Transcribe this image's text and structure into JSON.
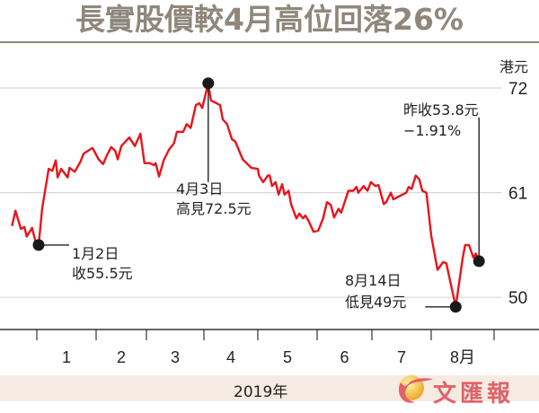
{
  "chart_data": {
    "type": "line",
    "title": "長實股價較4月高位回落26%",
    "unit_label": "港元",
    "xlabel": "2019年",
    "ylim": [
      46.6,
      73.3
    ],
    "yticks": [
      {
        "value": 72,
        "label": "72"
      },
      {
        "value": 61,
        "label": "61"
      },
      {
        "value": 50,
        "label": "50"
      }
    ],
    "month_ticks": [
      1,
      2,
      3,
      4,
      5,
      6,
      7,
      8,
      9
    ],
    "month_labels": [
      {
        "pos": 1.5,
        "label": "1"
      },
      {
        "pos": 2.5,
        "label": "2"
      },
      {
        "pos": 3.5,
        "label": "3"
      },
      {
        "pos": 4.5,
        "label": "4"
      },
      {
        "pos": 5.5,
        "label": "5"
      },
      {
        "pos": 6.5,
        "label": "6"
      },
      {
        "pos": 7.5,
        "label": "7"
      },
      {
        "pos": 8.5,
        "label": "8月"
      }
    ],
    "grid": true,
    "series": [
      {
        "name": "長實股價",
        "color": "#e8141b",
        "points": [
          [
            0.58,
            57.5
          ],
          [
            0.64,
            59.1
          ],
          [
            0.73,
            57.2
          ],
          [
            0.79,
            57.4
          ],
          [
            0.83,
            56.4
          ],
          [
            0.92,
            57.3
          ],
          [
            1.0,
            55.3
          ],
          [
            1.03,
            55.5
          ],
          [
            1.09,
            59.3
          ],
          [
            1.2,
            63.5
          ],
          [
            1.26,
            63.3
          ],
          [
            1.32,
            64.4
          ],
          [
            1.35,
            62.6
          ],
          [
            1.41,
            63.5
          ],
          [
            1.52,
            62.6
          ],
          [
            1.55,
            63.6
          ],
          [
            1.64,
            63.2
          ],
          [
            1.74,
            64.3
          ],
          [
            1.79,
            65.1
          ],
          [
            1.94,
            65.7
          ],
          [
            2.05,
            64.5
          ],
          [
            2.14,
            64.0
          ],
          [
            2.21,
            64.9
          ],
          [
            2.3,
            65.8
          ],
          [
            2.38,
            65.4
          ],
          [
            2.43,
            64.5
          ],
          [
            2.5,
            65.9
          ],
          [
            2.66,
            66.8
          ],
          [
            2.77,
            65.9
          ],
          [
            2.88,
            67.2
          ],
          [
            2.96,
            64.1
          ],
          [
            3.06,
            64.1
          ],
          [
            3.13,
            63.9
          ],
          [
            3.16,
            64.1
          ],
          [
            3.22,
            62.7
          ],
          [
            3.3,
            64.4
          ],
          [
            3.39,
            65.5
          ],
          [
            3.48,
            66.2
          ],
          [
            3.53,
            67.4
          ],
          [
            3.64,
            67.4
          ],
          [
            3.7,
            68.2
          ],
          [
            3.77,
            67.8
          ],
          [
            3.86,
            70.2
          ],
          [
            3.92,
            70.4
          ],
          [
            3.97,
            69.9
          ],
          [
            4.08,
            72.5
          ],
          [
            4.13,
            70.7
          ],
          [
            4.3,
            70.2
          ],
          [
            4.35,
            68.7
          ],
          [
            4.43,
            68.2
          ],
          [
            4.52,
            66.6
          ],
          [
            4.58,
            66.4
          ],
          [
            4.72,
            64.5
          ],
          [
            4.88,
            63.6
          ],
          [
            5.0,
            63.5
          ],
          [
            5.02,
            62.8
          ],
          [
            5.09,
            62.1
          ],
          [
            5.17,
            62.8
          ],
          [
            5.2,
            62.8
          ],
          [
            5.24,
            61.7
          ],
          [
            5.3,
            62.1
          ],
          [
            5.35,
            60.8
          ],
          [
            5.41,
            61.9
          ],
          [
            5.45,
            60.8
          ],
          [
            5.52,
            61.2
          ],
          [
            5.56,
            59.8
          ],
          [
            5.65,
            58.3
          ],
          [
            5.7,
            58.8
          ],
          [
            5.76,
            58.3
          ],
          [
            5.8,
            58.6
          ],
          [
            5.85,
            58.1
          ],
          [
            5.94,
            56.9
          ],
          [
            6.02,
            57.0
          ],
          [
            6.11,
            58.3
          ],
          [
            6.18,
            60.0
          ],
          [
            6.25,
            59.7
          ],
          [
            6.31,
            58.4
          ],
          [
            6.39,
            59.3
          ],
          [
            6.44,
            58.9
          ],
          [
            6.57,
            61.2
          ],
          [
            6.66,
            61.2
          ],
          [
            6.72,
            61.6
          ],
          [
            6.75,
            61.0
          ],
          [
            6.85,
            61.7
          ],
          [
            6.92,
            61.2
          ],
          [
            6.98,
            62.1
          ],
          [
            7.06,
            61.7
          ],
          [
            7.11,
            61.8
          ],
          [
            7.2,
            59.8
          ],
          [
            7.24,
            60.0
          ],
          [
            7.32,
            61.0
          ],
          [
            7.36,
            60.3
          ],
          [
            7.58,
            61.0
          ],
          [
            7.62,
            61.6
          ],
          [
            7.67,
            61.4
          ],
          [
            7.74,
            62.8
          ],
          [
            7.8,
            62.4
          ],
          [
            7.85,
            61.2
          ],
          [
            7.92,
            61.0
          ],
          [
            8.0,
            56.5
          ],
          [
            8.1,
            52.9
          ],
          [
            8.19,
            53.7
          ],
          [
            8.24,
            53.6
          ],
          [
            8.39,
            49.0
          ],
          [
            8.5,
            54.1
          ],
          [
            8.54,
            55.5
          ],
          [
            8.6,
            55.5
          ],
          [
            8.67,
            54.2
          ],
          [
            8.71,
            54.6
          ],
          [
            8.76,
            53.8
          ]
        ]
      }
    ],
    "annotations": [
      {
        "id": "jan2",
        "pos": 1.03,
        "value": 55.5,
        "lines": [
          "1月2日",
          "收55.5元"
        ]
      },
      {
        "id": "apr3",
        "pos": 4.08,
        "value": 72.5,
        "lines": [
          "4月3日",
          "高見72.5元"
        ]
      },
      {
        "id": "aug14",
        "pos": 8.39,
        "value": 49.0,
        "lines": [
          "8月14日",
          "低見49元"
        ]
      },
      {
        "id": "last",
        "pos": 8.76,
        "value": 53.8,
        "lines": [
          "昨收53.8元",
          "−1.91%"
        ]
      }
    ]
  },
  "logo": {
    "text": "文匯報"
  }
}
